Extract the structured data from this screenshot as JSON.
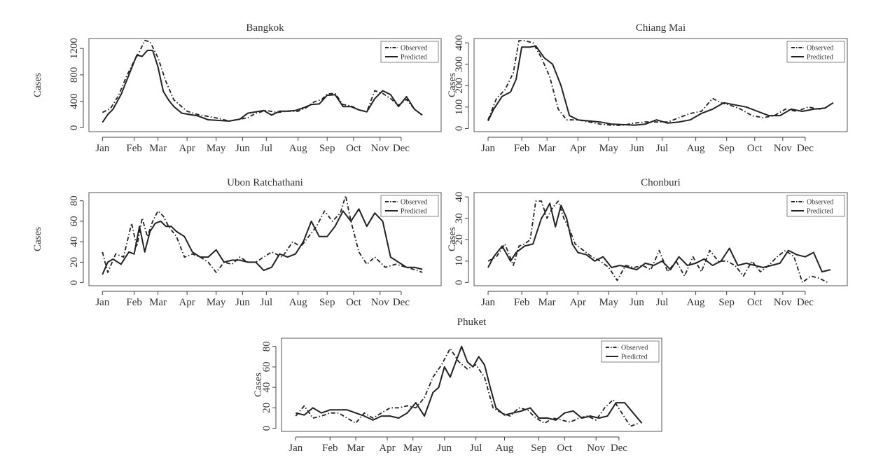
{
  "figure": {
    "background": "#ffffff"
  },
  "chart_data": [
    {
      "type": "line",
      "title": "Bangkok",
      "ylabel": "Cases",
      "xlabel": "",
      "yticks": [
        0,
        400,
        800,
        1200
      ],
      "ylim": [
        -60,
        1350
      ],
      "x_months": [
        "Jan",
        "Feb",
        "Mar",
        "Apr",
        "May",
        "Jun",
        "Jul",
        "Aug",
        "Sep",
        "Oct",
        "Nov",
        "Dec"
      ],
      "month_pos": [
        0,
        1.2,
        2.1,
        3.2,
        4.3,
        5.3,
        6.2,
        7.4,
        8.5,
        9.5,
        10.5,
        11.3
      ],
      "xlim": [
        -0.3,
        12.6
      ],
      "legend": {
        "placement": "top-right",
        "entries": [
          "Observed",
          "Predicted"
        ]
      },
      "series": [
        {
          "name": "Observed",
          "style": "dashdot",
          "color": "#222222",
          "x": [
            0,
            0.3,
            0.6,
            0.9,
            1.2,
            1.4,
            1.6,
            1.8,
            2.1,
            2.4,
            2.7,
            3.2,
            3.6,
            4.0,
            4.4,
            4.8,
            5.2,
            5.5,
            5.8,
            6.2,
            6.6,
            7.0,
            7.4,
            7.7,
            8.0,
            8.3,
            8.5,
            8.8,
            9.1,
            9.4,
            9.7,
            10.0,
            10.3,
            10.6,
            10.9,
            11.2,
            11.5,
            11.8,
            12.1
          ],
          "values": [
            230,
            290,
            480,
            770,
            1010,
            1150,
            1320,
            1300,
            1060,
            700,
            420,
            250,
            200,
            170,
            140,
            100,
            130,
            150,
            220,
            260,
            230,
            250,
            250,
            300,
            390,
            430,
            510,
            520,
            350,
            330,
            270,
            240,
            560,
            520,
            440,
            340,
            430,
            280,
            190
          ]
        },
        {
          "name": "Predicted",
          "style": "solid",
          "color": "#222222",
          "x": [
            0,
            0.2,
            0.4,
            0.7,
            1.0,
            1.3,
            1.5,
            1.7,
            1.9,
            2.1,
            2.3,
            2.5,
            2.7,
            3.0,
            3.3,
            3.6,
            4.0,
            4.4,
            4.8,
            5.2,
            5.5,
            5.8,
            6.1,
            6.4,
            6.7,
            7.0,
            7.3,
            7.6,
            7.9,
            8.2,
            8.5,
            8.8,
            9.1,
            9.4,
            9.7,
            10.0,
            10.3,
            10.6,
            10.9,
            11.2,
            11.5,
            11.8,
            12.1
          ],
          "values": [
            80,
            200,
            280,
            500,
            800,
            1100,
            1080,
            1170,
            1170,
            920,
            550,
            420,
            320,
            220,
            200,
            180,
            120,
            110,
            100,
            130,
            220,
            240,
            260,
            190,
            250,
            250,
            260,
            300,
            350,
            360,
            490,
            500,
            320,
            320,
            270,
            240,
            440,
            560,
            500,
            320,
            470,
            280,
            190
          ]
        }
      ]
    },
    {
      "type": "line",
      "title": "Chiang Mai",
      "ylabel": "Cases",
      "xlabel": "",
      "yticks": [
        0,
        100,
        200,
        300,
        400
      ],
      "ylim": [
        -15,
        420
      ],
      "x_months": [
        "Jan",
        "Feb",
        "Mar",
        "Apr",
        "May",
        "Jun",
        "Jul",
        "Aug",
        "Sep",
        "Oct",
        "Nov",
        "Dec"
      ],
      "month_pos": [
        0,
        1.2,
        2.1,
        3.2,
        4.3,
        5.3,
        6.2,
        7.4,
        8.5,
        9.5,
        10.5,
        11.3
      ],
      "xlim": [
        -0.3,
        12.6
      ],
      "legend": {
        "placement": "top-right",
        "entries": [
          "Observed",
          "Predicted"
        ]
      },
      "series": [
        {
          "name": "Observed",
          "style": "dashdot",
          "color": "#222222",
          "x": [
            0,
            0.3,
            0.6,
            0.9,
            1.1,
            1.3,
            1.6,
            1.9,
            2.2,
            2.5,
            2.8,
            3.2,
            3.6,
            4.0,
            4.4,
            4.8,
            5.2,
            5.6,
            6.0,
            6.4,
            6.8,
            7.2,
            7.6,
            8.0,
            8.3,
            8.6,
            9.0,
            9.4,
            9.8,
            10.2,
            10.6,
            11.0,
            11.4,
            11.8,
            12.1
          ],
          "values": [
            40,
            140,
            180,
            260,
            410,
            410,
            400,
            330,
            240,
            90,
            40,
            40,
            30,
            20,
            15,
            15,
            25,
            30,
            30,
            30,
            50,
            70,
            80,
            140,
            120,
            110,
            90,
            60,
            50,
            60,
            90,
            80,
            100,
            90,
            100
          ]
        },
        {
          "name": "Predicted",
          "style": "solid",
          "color": "#222222",
          "x": [
            0,
            0.2,
            0.5,
            0.8,
            1.0,
            1.2,
            1.5,
            1.7,
            2.0,
            2.3,
            2.6,
            2.9,
            3.2,
            3.6,
            4.0,
            4.4,
            4.8,
            5.2,
            5.6,
            6.0,
            6.4,
            6.8,
            7.2,
            7.6,
            8.0,
            8.4,
            8.8,
            9.2,
            9.6,
            10.0,
            10.4,
            10.8,
            11.2,
            11.6,
            12.0,
            12.3
          ],
          "values": [
            35,
            90,
            150,
            170,
            230,
            380,
            380,
            385,
            330,
            300,
            200,
            60,
            40,
            35,
            30,
            20,
            18,
            15,
            20,
            40,
            25,
            30,
            40,
            70,
            90,
            120,
            110,
            100,
            80,
            60,
            60,
            90,
            80,
            90,
            95,
            120
          ]
        }
      ]
    },
    {
      "type": "line",
      "title": "Ubon Ratchathani",
      "ylabel": "Cases",
      "xlabel": "",
      "yticks": [
        0,
        20,
        40,
        60,
        80
      ],
      "ylim": [
        -3,
        88
      ],
      "x_months": [
        "Jan",
        "Feb",
        "Mar",
        "Apr",
        "May",
        "Jun",
        "Jul",
        "Aug",
        "Sep",
        "Oct",
        "Nov",
        "Dec"
      ],
      "month_pos": [
        0,
        1.2,
        2.1,
        3.2,
        4.3,
        5.3,
        6.2,
        7.4,
        8.5,
        9.5,
        10.5,
        11.3
      ],
      "xlim": [
        -0.3,
        12.6
      ],
      "legend": {
        "placement": "top-right",
        "entries": [
          "Observed",
          "Predicted"
        ]
      },
      "series": [
        {
          "name": "Observed",
          "style": "dashdot",
          "color": "#222222",
          "x": [
            0,
            0.2,
            0.5,
            0.8,
            1.1,
            1.3,
            1.5,
            1.7,
            1.9,
            2.1,
            2.3,
            2.5,
            2.8,
            3.1,
            3.4,
            3.7,
            4.0,
            4.3,
            4.6,
            4.9,
            5.2,
            5.5,
            5.8,
            6.1,
            6.4,
            6.8,
            7.2,
            7.5,
            7.8,
            8.1,
            8.4,
            8.7,
            9.0,
            9.2,
            9.4,
            9.7,
            10.0,
            10.3,
            10.7,
            11.1,
            11.5,
            11.9,
            12.1
          ],
          "values": [
            30,
            10,
            28,
            25,
            58,
            35,
            63,
            45,
            60,
            70,
            65,
            55,
            45,
            25,
            28,
            25,
            20,
            10,
            20,
            18,
            25,
            20,
            20,
            25,
            30,
            25,
            40,
            35,
            45,
            55,
            70,
            60,
            68,
            85,
            60,
            30,
            18,
            25,
            15,
            18,
            15,
            12,
            10
          ]
        },
        {
          "name": "Predicted",
          "style": "solid",
          "color": "#222222",
          "x": [
            0,
            0.2,
            0.4,
            0.7,
            1.0,
            1.2,
            1.4,
            1.6,
            1.8,
            2.0,
            2.2,
            2.4,
            2.6,
            2.8,
            3.1,
            3.4,
            3.7,
            4.0,
            4.3,
            4.6,
            4.9,
            5.2,
            5.5,
            5.8,
            6.1,
            6.4,
            6.7,
            7.0,
            7.3,
            7.6,
            7.9,
            8.2,
            8.5,
            8.8,
            9.1,
            9.4,
            9.7,
            10.0,
            10.3,
            10.6,
            10.9,
            11.2,
            11.5,
            11.8,
            12.1
          ],
          "values": [
            8,
            20,
            23,
            18,
            30,
            28,
            55,
            30,
            50,
            58,
            60,
            55,
            55,
            50,
            45,
            30,
            25,
            25,
            32,
            20,
            22,
            22,
            20,
            20,
            12,
            15,
            28,
            25,
            28,
            40,
            60,
            45,
            45,
            55,
            70,
            60,
            72,
            55,
            68,
            60,
            25,
            20,
            15,
            15,
            13
          ]
        }
      ]
    },
    {
      "type": "line",
      "title": "Chonburi",
      "ylabel": "Cases",
      "xlabel": "",
      "yticks": [
        0,
        10,
        20,
        30,
        40
      ],
      "ylim": [
        -1.5,
        42
      ],
      "x_months": [
        "Jan",
        "Feb",
        "Mar",
        "Apr",
        "May",
        "Jun",
        "Jul",
        "Aug",
        "Sep",
        "Oct",
        "Nov",
        "Dec"
      ],
      "month_pos": [
        0,
        1.2,
        2.1,
        3.2,
        4.3,
        5.3,
        6.2,
        7.4,
        8.5,
        9.5,
        10.5,
        11.3
      ],
      "xlim": [
        -0.3,
        12.6
      ],
      "legend": {
        "placement": "top-right",
        "entries": [
          "Observed",
          "Predicted"
        ]
      },
      "series": [
        {
          "name": "Observed",
          "style": "dashdot",
          "color": "#222222",
          "x": [
            0,
            0.3,
            0.6,
            0.9,
            1.1,
            1.3,
            1.5,
            1.7,
            1.9,
            2.1,
            2.3,
            2.5,
            2.7,
            2.9,
            3.1,
            3.4,
            3.7,
            4.0,
            4.3,
            4.6,
            4.9,
            5.2,
            5.5,
            5.8,
            6.1,
            6.4,
            6.7,
            7.0,
            7.3,
            7.6,
            7.9,
            8.2,
            8.5,
            8.8,
            9.1,
            9.4,
            9.7,
            10.0,
            10.3,
            10.6,
            10.9,
            11.2,
            11.5,
            11.8,
            12.1
          ],
          "values": [
            10,
            12,
            18,
            8,
            17,
            18,
            20,
            38,
            38,
            30,
            35,
            38,
            30,
            25,
            18,
            15,
            12,
            10,
            7,
            1,
            8,
            7,
            8,
            6,
            15,
            5,
            10,
            3,
            12,
            5,
            15,
            10,
            10,
            8,
            3,
            10,
            5,
            8,
            12,
            15,
            12,
            0,
            3,
            2,
            0
          ]
        },
        {
          "name": "Predicted",
          "style": "solid",
          "color": "#222222",
          "x": [
            0,
            0.2,
            0.5,
            0.8,
            1.0,
            1.3,
            1.6,
            1.9,
            2.0,
            2.2,
            2.4,
            2.6,
            2.8,
            3.0,
            3.2,
            3.5,
            3.8,
            4.1,
            4.4,
            4.7,
            5.0,
            5.3,
            5.6,
            5.9,
            6.2,
            6.5,
            6.8,
            7.1,
            7.4,
            7.7,
            8.0,
            8.3,
            8.6,
            8.9,
            9.2,
            9.5,
            9.8,
            10.1,
            10.4,
            10.7,
            11.0,
            11.3,
            11.6,
            11.9,
            12.2
          ],
          "values": [
            7,
            12,
            17,
            10,
            14,
            17,
            18,
            30,
            32,
            37,
            26,
            36,
            30,
            18,
            14,
            13,
            10,
            12,
            7,
            8,
            7,
            6,
            9,
            8,
            10,
            6,
            12,
            8,
            9,
            11,
            8,
            10,
            16,
            8,
            9,
            8,
            7,
            8,
            9,
            15,
            13,
            12,
            14,
            5,
            6
          ]
        }
      ]
    },
    {
      "type": "line",
      "title": "Phuket",
      "ylabel": "Cases",
      "xlabel": "",
      "yticks": [
        0,
        20,
        40,
        60,
        80
      ],
      "ylim": [
        -3,
        88
      ],
      "x_months": [
        "Jan",
        "Feb",
        "Mar",
        "Apr",
        "May",
        "Jun",
        "Jul",
        "Aug",
        "Sep",
        "Oct",
        "Nov",
        "Dec"
      ],
      "month_pos": [
        0,
        1.2,
        2.1,
        3.2,
        4.1,
        5.2,
        6.3,
        7.3,
        8.5,
        9.4,
        10.5,
        11.3
      ],
      "xlim": [
        -0.3,
        12.6
      ],
      "legend": {
        "placement": "top-right",
        "entries": [
          "Observed",
          "Predicted"
        ]
      },
      "series": [
        {
          "name": "Observed",
          "style": "dashdot",
          "color": "#222222",
          "x": [
            0,
            0.3,
            0.6,
            0.9,
            1.2,
            1.5,
            1.8,
            2.1,
            2.4,
            2.7,
            3.0,
            3.3,
            3.6,
            3.9,
            4.2,
            4.5,
            4.8,
            5.1,
            5.4,
            5.7,
            6.0,
            6.3,
            6.6,
            6.9,
            7.2,
            7.5,
            7.8,
            8.1,
            8.4,
            8.7,
            9.0,
            9.3,
            9.6,
            9.9,
            10.2,
            10.5,
            10.8,
            11.1,
            11.4,
            11.7,
            12.0
          ],
          "values": [
            12,
            22,
            10,
            12,
            15,
            15,
            10,
            5,
            15,
            10,
            15,
            20,
            20,
            22,
            20,
            30,
            50,
            62,
            78,
            65,
            58,
            62,
            50,
            20,
            15,
            12,
            20,
            18,
            10,
            5,
            10,
            8,
            6,
            10,
            12,
            8,
            20,
            28,
            15,
            2,
            5
          ]
        },
        {
          "name": "Predicted",
          "style": "solid",
          "color": "#222222",
          "x": [
            0,
            0.3,
            0.6,
            0.9,
            1.2,
            1.5,
            1.8,
            2.1,
            2.4,
            2.7,
            3.0,
            3.3,
            3.6,
            3.9,
            4.2,
            4.5,
            4.8,
            5.0,
            5.2,
            5.4,
            5.6,
            5.8,
            6.0,
            6.2,
            6.4,
            6.6,
            6.8,
            7.0,
            7.3,
            7.6,
            7.9,
            8.2,
            8.5,
            8.8,
            9.1,
            9.4,
            9.7,
            10.0,
            10.3,
            10.6,
            10.9,
            11.2,
            11.5,
            11.8,
            12.1
          ],
          "values": [
            15,
            13,
            20,
            15,
            18,
            18,
            18,
            15,
            12,
            8,
            12,
            12,
            10,
            15,
            25,
            12,
            35,
            40,
            60,
            50,
            65,
            80,
            65,
            60,
            70,
            62,
            40,
            20,
            13,
            15,
            17,
            20,
            10,
            10,
            8,
            15,
            17,
            10,
            12,
            10,
            12,
            25,
            25,
            15,
            5
          ]
        }
      ]
    }
  ]
}
